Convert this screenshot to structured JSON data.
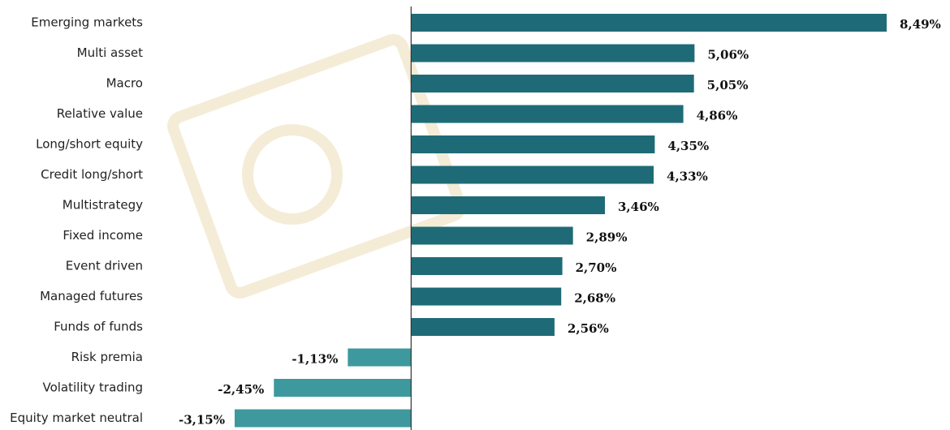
{
  "chart_data": {
    "type": "bar",
    "orientation": "horizontal",
    "categories": [
      "Emerging markets",
      "Multi asset",
      "Macro",
      "Relative value",
      "Long/short equity",
      "Credit long/short",
      "Multistrategy",
      "Fixed income",
      "Event driven",
      "Managed futures",
      "Funds of funds",
      "Risk premia",
      "Volatility trading",
      "Equity market neutral"
    ],
    "values": [
      8.49,
      5.06,
      5.05,
      4.86,
      4.35,
      4.33,
      3.46,
      2.89,
      2.7,
      2.68,
      2.56,
      -1.13,
      -2.45,
      -3.15
    ],
    "value_labels": [
      "8,49%",
      "5,06%",
      "5,05%",
      "4,86%",
      "4,35%",
      "4,33%",
      "3,46%",
      "2,89%",
      "2,70%",
      "2,68%",
      "2,56%",
      "-1,13%",
      "-2,45%",
      "-3,15%"
    ],
    "color": "#1e6b77",
    "negative_color": "#3e999e"
  }
}
